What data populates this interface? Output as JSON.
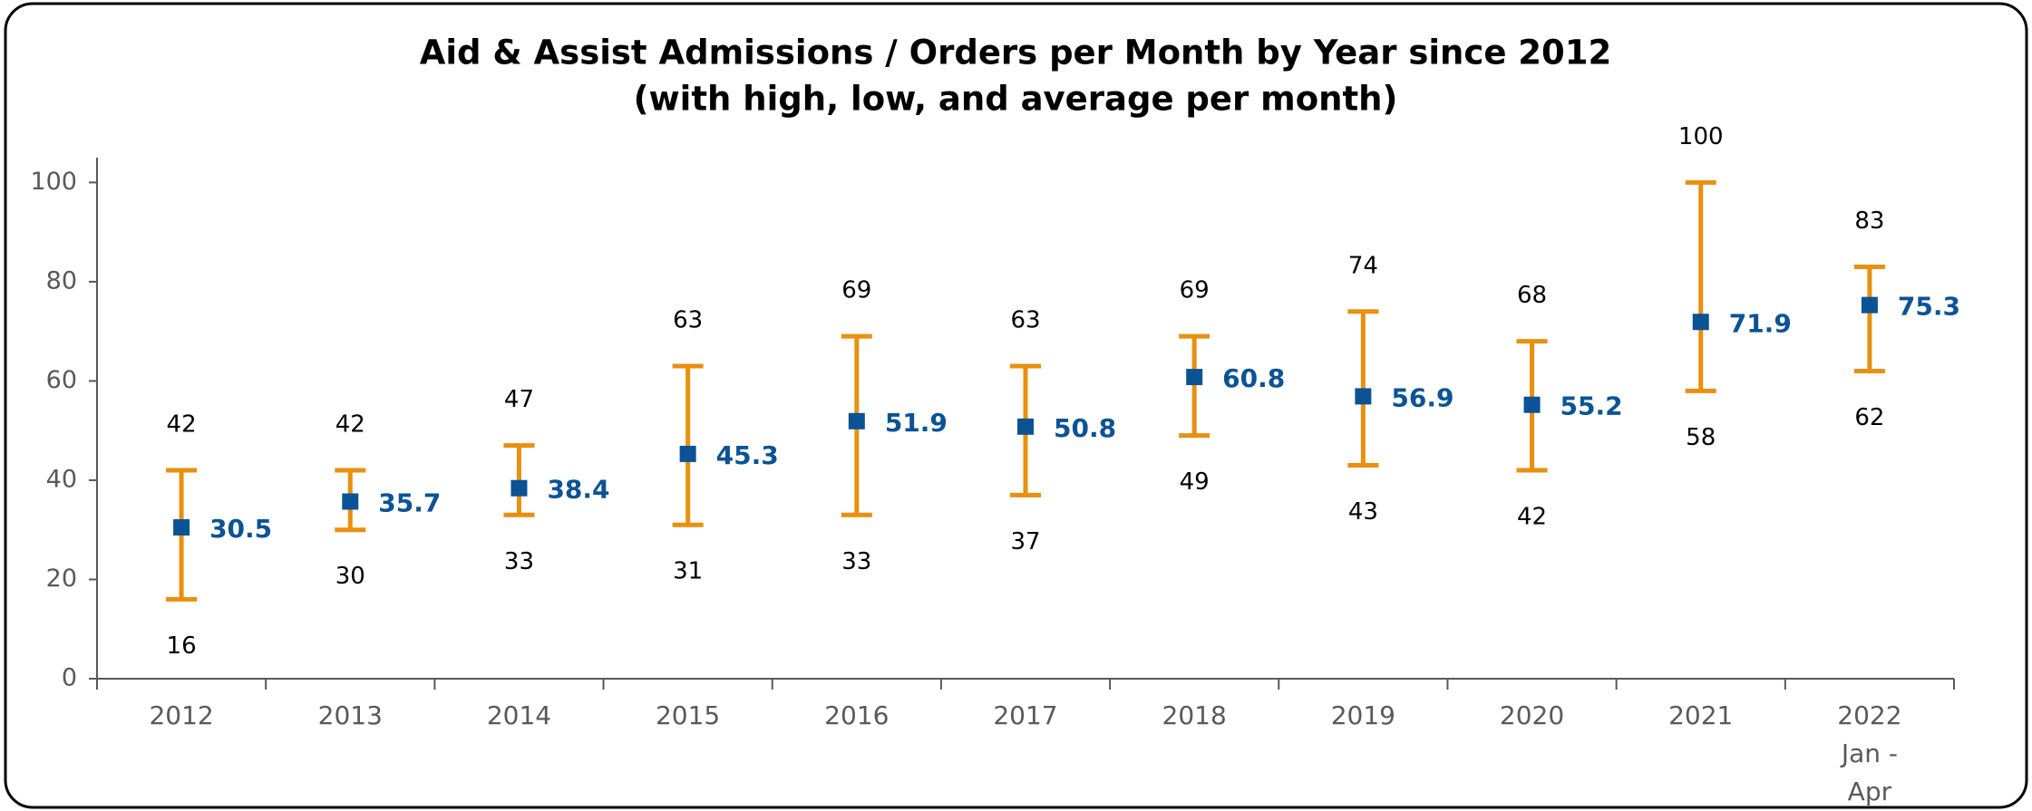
{
  "chart_data": {
    "type": "high_low_average",
    "title": "Aid & Assist Admissions / Orders per Month by Year since 2012",
    "subtitle": "(with high, low, and average per month)",
    "categories": [
      "2012",
      "2013",
      "2014",
      "2015",
      "2016",
      "2017",
      "2018",
      "2019",
      "2020",
      "2021",
      "2022\nJan -\nApr"
    ],
    "series": [
      {
        "name": "High",
        "color": "#e8900f",
        "values": [
          42,
          42,
          47,
          63,
          69,
          63,
          69,
          74,
          68,
          100,
          83
        ]
      },
      {
        "name": "Low",
        "color": "#e8900f",
        "values": [
          16,
          30,
          33,
          31,
          33,
          37,
          49,
          43,
          42,
          58,
          62
        ]
      },
      {
        "name": "Average",
        "color": "#0b5394",
        "values": [
          30.5,
          35.7,
          38.4,
          45.3,
          51.9,
          50.8,
          60.8,
          56.9,
          55.2,
          71.9,
          75.3
        ]
      }
    ],
    "ylim": [
      0,
      105
    ],
    "yticks": [
      0,
      20,
      40,
      60,
      80,
      100
    ]
  }
}
